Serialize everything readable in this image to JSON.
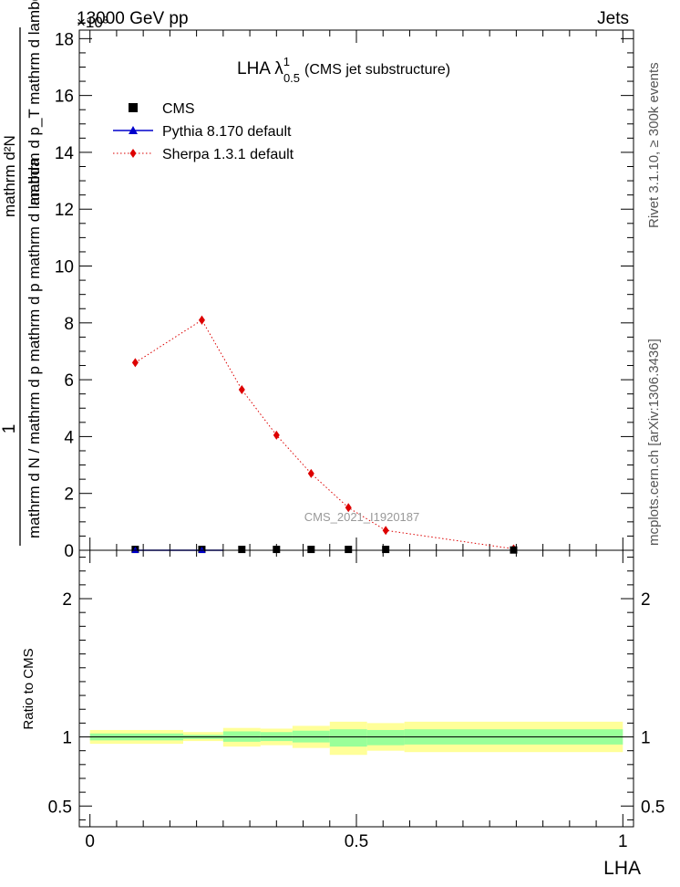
{
  "header": {
    "left": "13000 GeV pp",
    "right": "Jets",
    "exponent": "×10³"
  },
  "side_labels": {
    "rivet": "Rivet 3.1.10, ≥ 300k events",
    "mcplots": "mcplots.cern.ch [arXiv:1306.3436]"
  },
  "chart_data": [
    {
      "type": "line",
      "title_main": "LHA λ",
      "title_sup": "1",
      "title_sub": "0.5",
      "title_rest": "(CMS jet substructure)",
      "watermark": "CMS_2021_I1920187",
      "ylabel_top": "1",
      "ylabel_bottom": "mathrm d N / mathrm d p  mathrm d p  mathrm d lambda",
      "ylabel_num": "mathrm d²N",
      "ylabel_den": "mathrm d p_T mathrm d lambda",
      "xlim": [
        -0.02,
        1.02
      ],
      "ylim": [
        0,
        18.3
      ],
      "y_scale_note": "×10³",
      "yticks": [
        0,
        2,
        4,
        6,
        8,
        10,
        12,
        14,
        16,
        18
      ],
      "legend": [
        {
          "label": "CMS",
          "marker": "square",
          "color": "#000000"
        },
        {
          "label": "Pythia 8.170 default",
          "marker": "triangle",
          "color": "#0000cc"
        },
        {
          "label": "Sherpa 1.3.1 default",
          "marker": "diamond",
          "color": "#dd0000"
        }
      ],
      "series": [
        {
          "name": "CMS",
          "x": [
            0.085,
            0.21,
            0.285,
            0.35,
            0.415,
            0.485,
            0.555,
            0.795
          ],
          "y": [
            0.03,
            0.03,
            0.03,
            0.03,
            0.03,
            0.03,
            0.03,
            0.01
          ]
        },
        {
          "name": "Pythia 8.170 default",
          "x": [
            0.085,
            0.21,
            0.25
          ],
          "y": [
            0.0,
            0.0,
            0.0
          ]
        },
        {
          "name": "Sherpa 1.3.1 default",
          "x": [
            0.085,
            0.21,
            0.285,
            0.35,
            0.415,
            0.485,
            0.555,
            0.795
          ],
          "y": [
            6.6,
            8.1,
            5.65,
            4.05,
            2.7,
            1.5,
            0.7,
            0.05
          ],
          "err": [
            0.1,
            0.15,
            0.12,
            0.1,
            0.08,
            0.06,
            0.04,
            0.02
          ]
        }
      ]
    },
    {
      "type": "area",
      "ylabel": "Ratio to CMS",
      "xlabel": "LHA",
      "xlim": [
        -0.02,
        1.02
      ],
      "ylim": [
        0.35,
        2.35
      ],
      "yticks": [
        0.5,
        1,
        2
      ],
      "xticks": [
        0,
        0.5,
        1
      ],
      "xtick_labels": [
        "0",
        "0.5",
        "1"
      ],
      "bins": [
        {
          "lo": 0.0,
          "hi": 0.175,
          "stat": [
            0.975,
            1.025
          ],
          "tot": [
            0.95,
            1.05
          ]
        },
        {
          "lo": 0.175,
          "hi": 0.25,
          "stat": [
            0.985,
            1.015
          ],
          "tot": [
            0.97,
            1.035
          ]
        },
        {
          "lo": 0.25,
          "hi": 0.32,
          "stat": [
            0.965,
            1.04
          ],
          "tot": [
            0.93,
            1.065
          ]
        },
        {
          "lo": 0.32,
          "hi": 0.38,
          "stat": [
            0.97,
            1.035
          ],
          "tot": [
            0.94,
            1.06
          ]
        },
        {
          "lo": 0.38,
          "hi": 0.45,
          "stat": [
            0.96,
            1.045
          ],
          "tot": [
            0.92,
            1.08
          ]
        },
        {
          "lo": 0.45,
          "hi": 0.52,
          "stat": [
            0.93,
            1.055
          ],
          "tot": [
            0.87,
            1.11
          ]
        },
        {
          "lo": 0.52,
          "hi": 0.59,
          "stat": [
            0.94,
            1.05
          ],
          "tot": [
            0.9,
            1.1
          ]
        },
        {
          "lo": 0.59,
          "hi": 1.0,
          "stat": [
            0.945,
            1.055
          ],
          "tot": [
            0.89,
            1.11
          ]
        }
      ]
    }
  ]
}
